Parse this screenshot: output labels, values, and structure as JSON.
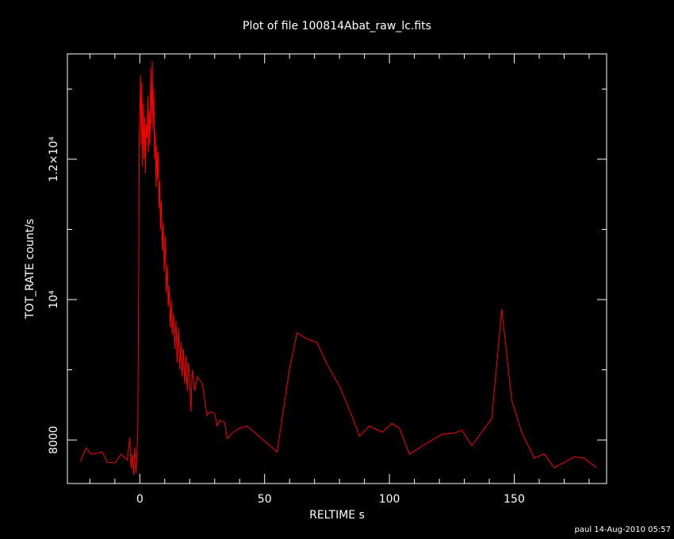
{
  "chart_data": {
    "type": "line",
    "title": "Plot of file 100814Abat_raw_lc.fits",
    "x_label": "RELTIME  s",
    "y_label": "TOT_RATE  count/s",
    "footer": "paul 14-Aug-2010 05:57",
    "color": "#ff0000",
    "xlim": [
      -29,
      187
    ],
    "ylim": [
      7380,
      13500
    ],
    "xticks": [
      0,
      50,
      100,
      150
    ],
    "x_minor_ticks": [
      -20,
      -10,
      10,
      20,
      30,
      40,
      60,
      70,
      80,
      90,
      110,
      120,
      130,
      140,
      160,
      170,
      180
    ],
    "yticks": [
      8000,
      {
        "value": 10000,
        "label": "10⁴"
      },
      {
        "value": 12000,
        "label": "1.2×10⁴"
      }
    ],
    "y_minor_ticks": [
      9000,
      11000,
      13000
    ],
    "x": [
      -23.8,
      -21.5,
      -19.5,
      -15,
      -13,
      -10,
      -7.5,
      -5,
      -4,
      -3.5,
      -3,
      -2.5,
      -2,
      -1.5,
      -0.8,
      -0.4,
      -0.2,
      0.1,
      0.3,
      0.5,
      0.8,
      1.1,
      1.4,
      1.7,
      2.0,
      2.3,
      2.6,
      2.9,
      3.2,
      3.5,
      3.8,
      4.1,
      4.4,
      4.7,
      5.0,
      5.3,
      5.6,
      5.9,
      6.2,
      6.5,
      6.8,
      7.1,
      7.4,
      7.7,
      8.0,
      8.3,
      8.6,
      9.0,
      9.4,
      9.8,
      10.2,
      10.6,
      11.0,
      11.4,
      11.8,
      12.2,
      12.6,
      13.0,
      13.5,
      14.0,
      14.5,
      15.0,
      15.5,
      16.0,
      16.5,
      17.0,
      17.5,
      18.0,
      18.5,
      19.0,
      19.5,
      20.0,
      20.5,
      21.0,
      22.0,
      23.0,
      25.0,
      27,
      28,
      30,
      31,
      32,
      34,
      35,
      36,
      37,
      40,
      43,
      55,
      60,
      63,
      67,
      71,
      75,
      80,
      85,
      88,
      92,
      97,
      101,
      104,
      108,
      113,
      121,
      126,
      129,
      133,
      137,
      141,
      145,
      149,
      153,
      158,
      162,
      166,
      170,
      174,
      178,
      183
    ],
    "values": [
      7695,
      7887,
      7797,
      7830,
      7684,
      7672,
      7797,
      7718,
      8034,
      7600,
      7800,
      7500,
      7900,
      7525,
      8100,
      10600,
      12300,
      12800,
      13200,
      12200,
      13100,
      11900,
      12800,
      12000,
      12600,
      11800,
      12500,
      12300,
      12900,
      12100,
      12700,
      12200,
      13300,
      12500,
      13400,
      12400,
      13000,
      12000,
      12400,
      11600,
      12200,
      11700,
      12100,
      11300,
      11700,
      11000,
      11400,
      10700,
      11100,
      10400,
      10900,
      10100,
      10500,
      9900,
      10200,
      9600,
      10000,
      9500,
      9800,
      9300,
      9700,
      9100,
      9600,
      9000,
      9400,
      8900,
      9300,
      8800,
      9200,
      8700,
      9100,
      8800,
      8400,
      9000,
      8700,
      8900,
      8800,
      8350,
      8400,
      8380,
      8200,
      8280,
      8250,
      8020,
      8050,
      8100,
      8170,
      8200,
      7830,
      9017,
      9525,
      9440,
      9390,
      9080,
      8768,
      8339,
      8056,
      8200,
      8110,
      8235,
      8170,
      7797,
      7910,
      8080,
      8100,
      8140,
      7920,
      8110,
      8305,
      9864,
      8565,
      8110,
      7740,
      7800,
      7605,
      7680,
      7760,
      7740,
      7605
    ]
  }
}
